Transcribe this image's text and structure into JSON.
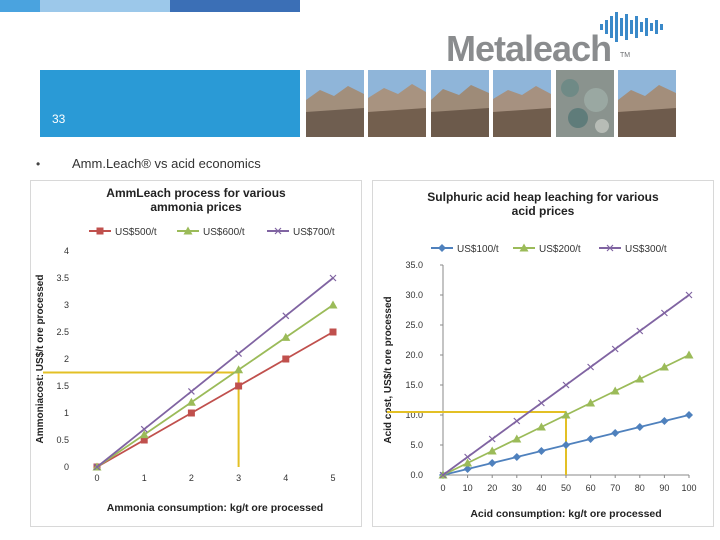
{
  "slide": {
    "number": "33",
    "bullet": "Amm.Leach® vs acid economics"
  },
  "logo": {
    "text": "Metaleach",
    "tm": "TM"
  },
  "colors": {
    "band": "#2a9ad6",
    "top_bar_1": "#4aa3df",
    "top_bar_2": "#9cc8ea",
    "top_bar_3": "#3b6fb6",
    "highlight": "#e3c025"
  },
  "chart_data": [
    {
      "type": "line",
      "title": "AmmLeach process for various ammonia prices",
      "title_lines": [
        "AmmLeach process for various",
        "ammonia prices"
      ],
      "xlabel": "Ammonia consumption: kg/t ore processed",
      "ylabel": "Ammoniacost: US$/t ore processed",
      "x": [
        0,
        1,
        2,
        3,
        4,
        5
      ],
      "xlim": [
        0,
        5
      ],
      "ylim": [
        0,
        4
      ],
      "x_ticks": [
        "0",
        "1",
        "2",
        "3",
        "4",
        "5"
      ],
      "y_ticks": [
        "0",
        "0.5",
        "1",
        "1.5",
        "2",
        "2.5",
        "3",
        "3.5",
        "4"
      ],
      "legend": "top",
      "series": [
        {
          "name": "US$500/t",
          "color": "#c0504d",
          "marker": "square",
          "values": [
            0,
            0.5,
            1.0,
            1.5,
            2.0,
            2.5
          ]
        },
        {
          "name": "US$600/t",
          "color": "#9bbb59",
          "marker": "triangle",
          "values": [
            0,
            0.6,
            1.2,
            1.8,
            2.4,
            3.0
          ]
        },
        {
          "name": "US$700/t",
          "color": "#8064a2",
          "marker": "x",
          "values": [
            0,
            0.7,
            1.4,
            2.1,
            2.8,
            3.5
          ]
        }
      ],
      "highlight": {
        "x": 3,
        "y": 1.75
      }
    },
    {
      "type": "line",
      "title": "Sulphuric acid heap leaching for various acid prices",
      "title_lines": [
        "Sulphuric acid heap leaching for various",
        "acid prices"
      ],
      "xlabel": "Acid consumption: kg/t  ore processed",
      "ylabel": "Acid cost, US$/t ore processed",
      "x": [
        0,
        10,
        20,
        30,
        40,
        50,
        60,
        70,
        80,
        90,
        100
      ],
      "xlim": [
        0,
        100
      ],
      "ylim": [
        0,
        35
      ],
      "x_ticks": [
        "0",
        "10",
        "20",
        "30",
        "40",
        "50",
        "60",
        "70",
        "80",
        "90",
        "100"
      ],
      "y_ticks": [
        "0.0",
        "5.0",
        "10.0",
        "15.0",
        "20.0",
        "25.0",
        "30.0",
        "35.0"
      ],
      "legend": "top",
      "series": [
        {
          "name": "US$100/t",
          "color": "#4f81bd",
          "marker": "diamond",
          "values": [
            0,
            1,
            2,
            3,
            4,
            5,
            6,
            7,
            8,
            9,
            10
          ]
        },
        {
          "name": "US$200/t",
          "color": "#9bbb59",
          "marker": "triangle",
          "values": [
            0,
            2,
            4,
            6,
            8,
            10,
            12,
            14,
            16,
            18,
            20
          ]
        },
        {
          "name": "US$300/t",
          "color": "#8064a2",
          "marker": "x",
          "values": [
            0,
            3,
            6,
            9,
            12,
            15,
            18,
            21,
            24,
            27,
            30
          ]
        }
      ],
      "highlight": {
        "x": 50,
        "y": 10.5
      }
    }
  ]
}
